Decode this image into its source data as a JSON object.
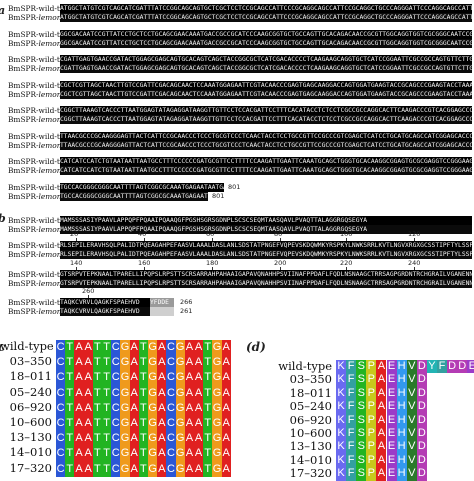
{
  "panel_a": {
    "label": "a",
    "wt_label": "BmSPR-wild-type",
    "mut_prefix": "BmSPR-",
    "mut_italic": "lemon",
    "blocks": [
      {
        "wt": "ATGGCTATGTCGTCAGCATCGATTTATCCGGCAGCAGTGCTCGCTCCTCCGCAGCCATTCCCGCAGGCAGCCATTCCGCAGGCTGCCCAGGGATTCCCAGGCAGCCATTCCGGCAGGAGC",
        "mut": "ATGGCTATGTCGTCAGCATCGATTTATCCGGCAGCAGTGCTCGCTCCTCCGCAGCCATTCCCGCAGGCAGCCATTCCGCAGGCTGCCCAGGGATTCCCAGGCAGCCATTCCGGCAGGAGC"
      },
      {
        "wt": "GGCGACAATCCGTTATCCTGCTCCTGCAGCGAACAAATGACCGCCGCATCCCAAGCGGTGCTGCCAGTTGCACAGACAACCGCGTTGGCAGGTGGTCGCGGGCAATCCGAAGGCTACGCAG",
        "mut": "GGCGACAATCCGTTATCCTGCTCCTGCAGCGAACAAATGACCGCCGCATCCCAAGCGGTGCTGCCAGTTGCACAGACAACCGCGTTGGCAGGTGGTCGCGGGCAATCCGAAGGCTACGCAG"
      },
      {
        "wt": "CGATTGAGTGAACCGATACTGGAGCGAGCAGTGCACAGTCAGCTACCGGCGCTCATCGACACCCCTCAAGAAGCAGGTGCTCATCCGGAATTCGCCGCCAGTGTTCTTGCAGCAGCTCTTGA",
        "mut": "CGATTGAGTGAACCGATACTGGAGCGAGCAGTGCACAGTCAGCTACCGGCGCTCATCGACACCCCTCAAGAAGCAGGTGCTCATCCGGAATTCGCCGCCAGTGTTCTTGCAGCAGCTCTTGA"
      },
      {
        "wt": "CGCTCGTTAGCTAACTTGTCCGATTCGACAGCAACTCCAAATGGAGAATTCGTACAACCCGAGTGAGCAAGGACCAGTGGATGAAGTACCGCAGCCCGAAGTACCTAAACTGGAAATCGCGGC",
        "mut": "CGCTCGTTAGCTAACTTGTCCGATTCGACAGCAACTCCAAATGGAGAATTCGTACAACCCGAGTGAGCAAGGACCAGTGGATGAAGTACCGCAGCCCGAAGTACCTAAACTGGAAATCGCGGC"
      },
      {
        "wt": "CGGCTTAAAGTCACCCTTAATGGAGTATAGAGGATAAGGTTGTTCCTCCACGATTCCTTTCACATACCTCTCCTCGCCGCCAGGCACTTCAAGACCCGTCACGGAGCCCAAGAATGCTGCAC",
        "mut": "CGGCTTAAAGTCACCCTTAATGGAGTATAGAGGATAAGGTTGTTCCTCCACGATTCCTTTCACATACCTCTCCTCGCCGCCAGGCACTTCAAGACCCGTCACGGAGCCCAAGAATGCTGCAC"
      },
      {
        "wt": "TTAACGCCCGCAAGGGAGTTACTCATTCCGCAACCCTCCCTGCGTCCCTCAACTACCTCCTGCCGTTCCGCCCGTCGAGCTCATCCTGCATGCAGCCATCGGAGCACCCGCCGTTCAGAACG",
        "mut": "TTAACGCCCGCAAGGGAGTTACTCATTCCGCAACCCTCCCTGCGTCCCTCAACTACCTCCTGCCGTTCCGCCCGTCGAGCTCATCCTGCATGCAGCCATCGGAGCACCCGCCGTTCAGAACG"
      },
      {
        "wt": "CATCATCCATCTGTAATAATTAATGCCTTTCCCCCCGATGCGTTCCTTTTCCAAGATTGAATTCAAATGCAGCTGGGTGCACAAGGCGGAGTGCGCGAGGTCCGGGAAGGGATAATACCCGG",
        "mut": "CATCATCCATCTGTAATAATTAATGCCTTTCCCCCCGATGCGTTCCTTTTCCAAGATTGAATTCAAATGCAGCTGGGTGCACAAGGCGGAGTGCGCGAGGTCCGGGAAGGGATAATACCCGG"
      },
      {
        "wt": "TGCCACGGGCGGGCAATTTTAGTCGGCGCAAATGAGAATAATGAGGCAAA",
        "mut": "TGCCACGGGCGGGCAATTTTAGTCGGCGCAAATGAGAATGA",
        "wt_num": "801",
        "mut_num": "801"
      }
    ]
  },
  "panel_b": {
    "label": "b",
    "wt_label": "BmSPR-wild-type",
    "mut_prefix": "BmSPR-",
    "mut_italic": "lemon",
    "blocks": [
      {
        "ruler": [],
        "wt": "MAMSSSASIYPAAVLAPPQPFPQAAIPQAAQGFPGSHSGRSGDNPLSCSCSEQMTAASQAVLPVAQTTALAGGRGQSEGYA",
        "mut": "MAMSSSASIYPAAVLAPPQPFPQAAIPQAAQGFPGSHSGRSGDNPLSCSCSEQMTAASQAVLPVAQTTALAGGRGQSEGYA"
      },
      {
        "ruler": [
          "20",
          "40",
          "60",
          "80",
          "100",
          "120"
        ],
        "wt": "RLSEPILERAVHSQLPALIDTPQEAGAHPEFAASVLAAALDASLANLSDSTATPNGEFVQPEVSKDQWMKYRSPKYLNWKSRRLKVTLNGVXRGXGCSSTIPFTYLSSPP",
        "mut": "RLSEPILERAVHSQLPALIDTPQEAGAHPEFAASVLAAALDASLANLSDSTATPNGEFVQPEVSKDQWMKYRSPKYLNWKSRRLKVTLNGVXRGXGCSSTIPFTYLSSPP"
      },
      {
        "ruler": [
          "140",
          "160",
          "180",
          "200",
          "220",
          "240"
        ],
        "wt": "GTSRPVTEPKNAALTPARELLIPQPSLRPSTTSCRSARRAHPAHAAIGAPAVQNAHHPSVIINAFPPDAFLFQDLNSNAAGCTRRSAGPGRDNTRCHGRAILVGANENNEA",
        "mut": "GTSRPVTEPKNAALTPARELLIPQPSLRPSTTSCRSARRAHPAHAAIGAPAVQNAHHPSVIINAFPPDAFLFQDLNSNAAGCTRRSAGPGRDNTRCHGRAILVGANENNEA"
      },
      {
        "ruler": [
          "260"
        ],
        "wt": "TAQKCVRVLQAGKFSPAEHVD",
        "wt_grey": "YFDDE",
        "mut": "TAQKCVRVLQAGKFSPAEHVD",
        "wt_num": "266",
        "mut_num": "261"
      }
    ]
  },
  "panel_c": {
    "label": "c",
    "columns": [
      "C",
      "T",
      "A",
      "A",
      "T",
      "T",
      "C",
      "G",
      "A",
      "T",
      "G",
      "A",
      "C",
      "G",
      "A",
      "A",
      "T",
      "G",
      "A"
    ],
    "rows": [
      "wild-type",
      "03–350",
      "18–011",
      "05–240",
      "06–920",
      "10–600",
      "13–130",
      "14–010",
      "17–320"
    ]
  },
  "panel_d": {
    "label": "d",
    "columns": [
      "K",
      "F",
      "S",
      "P",
      "A",
      "E",
      "H",
      "V",
      "D",
      "Y",
      "F",
      "D",
      "D",
      "E"
    ],
    "wt_len": 14,
    "mut_len": 9,
    "rows": [
      "wild-type",
      "03–350",
      "18–011",
      "05–240",
      "06–920",
      "10–600",
      "13–130",
      "14–010",
      "17–320"
    ]
  },
  "colors": {
    "A": "#e02020",
    "T": "#22b422",
    "C": "#2b57d6",
    "G": "#ef9a1c",
    "K": "#6a6af0",
    "F": "#33a0a0",
    "S": "#22b422",
    "P": "#c8c81c",
    "E": "#9b3cc8",
    "H": "#3399ee",
    "V": "#2a7a2a",
    "D": "#b43cb4",
    "Y": "#22b4b4"
  }
}
